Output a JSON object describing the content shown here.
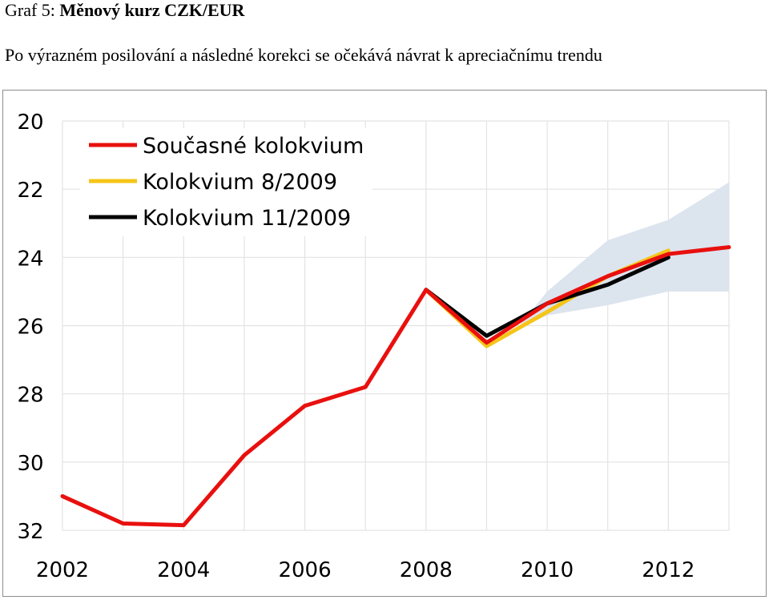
{
  "header": {
    "title_prefix": "Graf 5: ",
    "title_main": "Měnový kurz CZK/EUR",
    "subtitle": "Po výrazném posilování a následné korekci se očekává návrat k apreciačnímu trendu"
  },
  "chart_data": {
    "type": "line",
    "title": "Měnový kurz CZK/EUR",
    "xlabel": "",
    "ylabel": "",
    "x_ticks": [
      "2002",
      "2004",
      "2006",
      "2008",
      "2010",
      "2012"
    ],
    "y_ticks": [
      "20",
      "22",
      "24",
      "26",
      "28",
      "30",
      "32"
    ],
    "xlim": [
      2002,
      2013
    ],
    "ylim": [
      20,
      32
    ],
    "y_inverted": true,
    "grid": true,
    "legend_position": "top-left",
    "series": [
      {
        "name": "Současné kolokvium",
        "color": "#e8100e",
        "x": [
          2002,
          2003,
          2004,
          2005,
          2006,
          2007,
          2008,
          2009,
          2010,
          2011,
          2012,
          2013
        ],
        "y": [
          31.0,
          31.8,
          31.85,
          29.8,
          28.35,
          27.8,
          24.95,
          26.5,
          25.35,
          24.55,
          23.9,
          23.7
        ]
      },
      {
        "name": "Kolokvium 8/2009",
        "color": "#f5c518",
        "x": [
          2008,
          2009,
          2010,
          2011,
          2012
        ],
        "y": [
          24.95,
          26.6,
          25.6,
          24.55,
          23.8
        ]
      },
      {
        "name": "Kolokvium 11/2009",
        "color": "#000000",
        "x": [
          2008,
          2009,
          2010,
          2011,
          2012
        ],
        "y": [
          24.95,
          26.3,
          25.35,
          24.8,
          24.0
        ]
      }
    ],
    "band": {
      "color": "#dce4ee",
      "x": [
        2009.5,
        2010,
        2011,
        2012,
        2013
      ],
      "y_low": [
        26.1,
        25.7,
        25.4,
        25.0,
        25.0
      ],
      "y_high": [
        26.1,
        25.0,
        23.5,
        22.9,
        21.8
      ]
    }
  }
}
